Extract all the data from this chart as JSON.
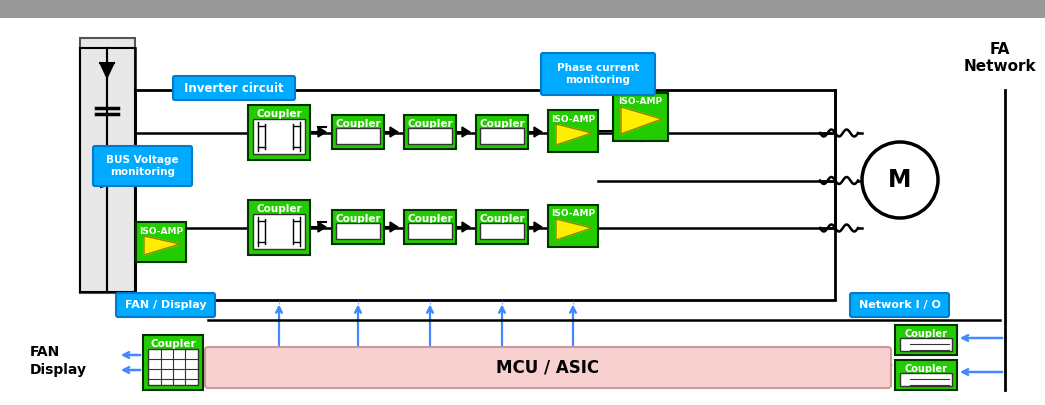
{
  "bg_top": "#9a9a9a",
  "bg_main": "#ffffff",
  "green": "#22cc00",
  "blue_label_bg": "#00aaff",
  "blue_border": "#007acc",
  "pink_mcu": "#f8d0d0",
  "arrow_blue": "#4488ff",
  "black": "#111111",
  "white": "#ffffff",
  "yellow": "#ffee00",
  "gray_left": "#e0e0e0",
  "inverter_label": "Inverter circuit",
  "bus_label": "BUS Voltage\nmonitoring",
  "phase_label": "Phase current\nmonitoring",
  "fan_label": "FAN / Display",
  "network_label": "Network I / O",
  "mcu_label": "MCU / ASIC",
  "fa_label": "FA\nNetwork",
  "fan_display_label": "FAN\nDisplay",
  "coupler_label": "Coupler",
  "iso_amp_label": "ISO-AMP",
  "motor_label": "M"
}
